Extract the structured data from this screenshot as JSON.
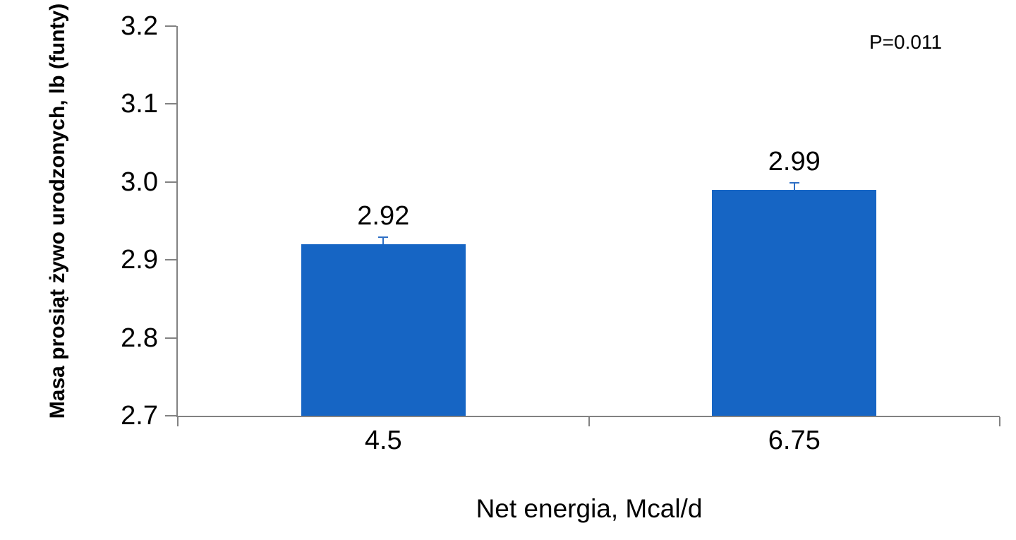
{
  "chart_data": {
    "type": "bar",
    "categories": [
      "4.5",
      "6.75"
    ],
    "values": [
      2.92,
      2.99
    ],
    "bar_labels": [
      "2.92",
      "2.99"
    ],
    "errors_plus": [
      0.008,
      0.008
    ],
    "title": "",
    "xlabel": "Net energia, Mcal/d",
    "ylabel": "Masa prosiąt żywo urodzonych, lb (funty)",
    "annotation": "P=0.011",
    "ylim": [
      2.7,
      3.2
    ],
    "yticks": [
      2.7,
      2.8,
      2.9,
      3.0,
      3.1,
      3.2
    ],
    "ytick_labels": [
      "2.7",
      "2.8",
      "2.9",
      "3.0",
      "3.1",
      "3.2"
    ],
    "grid": false,
    "legend": false,
    "bar_width_fraction": 0.4,
    "colors": {
      "bar": "#1665C4",
      "error_bar": "#2E6FC5",
      "axis": "#828282",
      "text": "#000000",
      "background": "#FFFFFF"
    }
  }
}
